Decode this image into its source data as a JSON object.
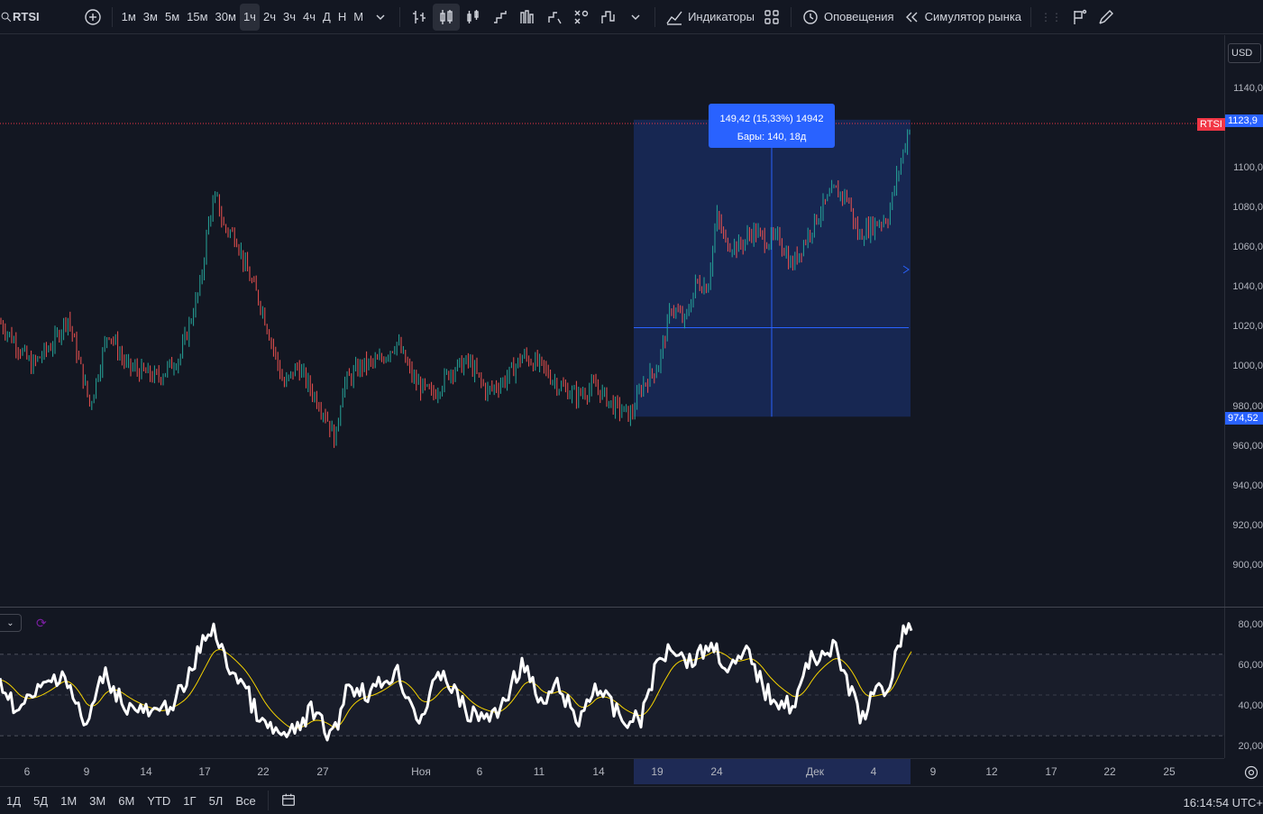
{
  "toolbar": {
    "symbol": "RTSI",
    "intervals": [
      "1м",
      "3м",
      "5м",
      "15м",
      "30м",
      "1ч",
      "2ч",
      "3ч",
      "4ч",
      "Д",
      "Н",
      "М"
    ],
    "active_interval": "1ч",
    "indicators_label": "Индикаторы",
    "alerts_label": "Оповещения",
    "replay_label": "Симулятор рынка"
  },
  "chart": {
    "currency": "USD",
    "price_labels": [
      "1140,0",
      "1100,0",
      "1080,0",
      "1060,0",
      "1040,0",
      "1020,0",
      "1000,0",
      "980,00",
      "960,00",
      "940,00",
      "920,00",
      "900,00"
    ],
    "last_price_label": "1123,9",
    "symbol_tag": "RTSI",
    "range_low_label": "974,52",
    "measure": {
      "line1": "149,42 (15,33%) 14942",
      "line2": "Бары: 140, 18д"
    },
    "colors": {
      "up": "#26a69a",
      "down": "#ef5350",
      "measure_fill": "#2962ff",
      "last_price": "#f23645"
    }
  },
  "indicator": {
    "levels": [
      "80,00",
      "60,00",
      "40,00",
      "20,00"
    ],
    "line_color": "#ffffff",
    "ma_color": "#f5d300"
  },
  "time_axis": {
    "labels": [
      "6",
      "9",
      "14",
      "17",
      "22",
      "27",
      "Ноя",
      "6",
      "11",
      "14",
      "19",
      "24",
      "Дек",
      "4",
      "9",
      "12",
      "17",
      "22",
      "25"
    ]
  },
  "bottom_bar": {
    "ranges": [
      "1Д",
      "5Д",
      "1М",
      "3М",
      "6М",
      "YTD",
      "1Г",
      "5Л",
      "Все"
    ],
    "clock": "16:14:54 UTC+"
  }
}
